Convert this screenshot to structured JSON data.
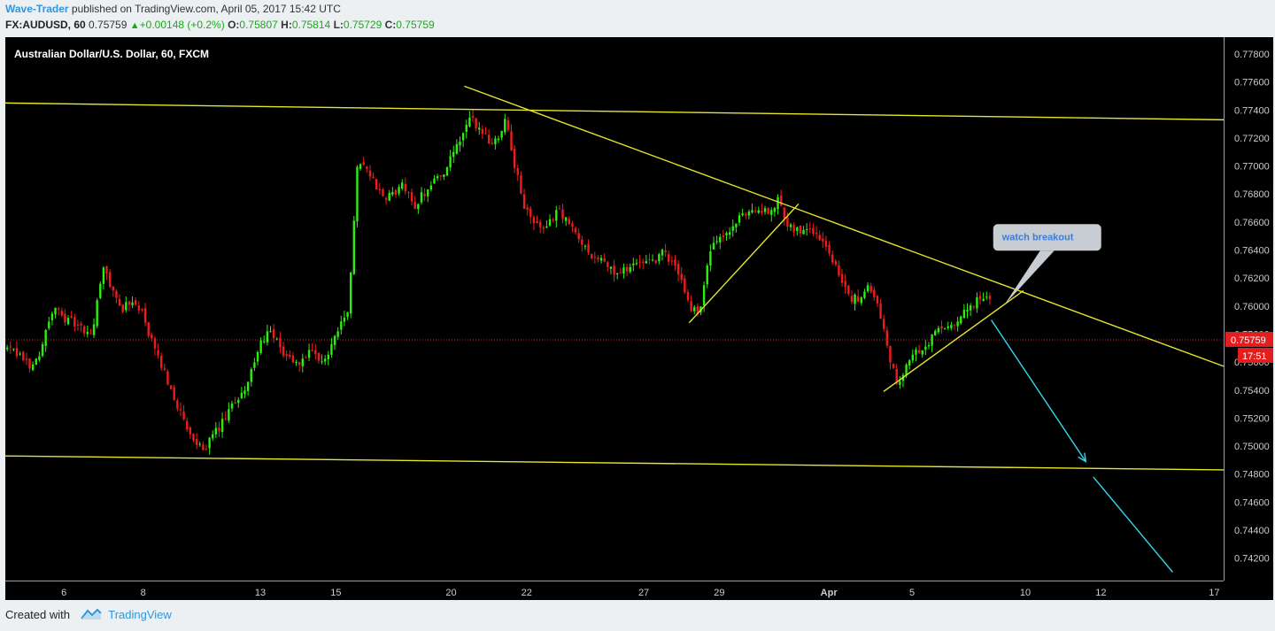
{
  "header": {
    "author": "Wave-Trader",
    "published_text": " published on TradingView.com, April 05, 2017 15:42 UTC",
    "symbol": "FX:AUDUSD, 60",
    "last": "0.75759",
    "change": "+0.00148 (+0.2%)",
    "o_label": "O:",
    "o_value": "0.75807",
    "h_label": "H:",
    "h_value": "0.75814",
    "l_label": "L:",
    "l_value": "0.75729",
    "c_label": "C:",
    "c_value": "0.75759"
  },
  "chart_data": {
    "type": "candlestick",
    "title": "Australian Dollar/U.S. Dollar, 60, FXCM",
    "ylim": [
      0.7404,
      0.7792
    ],
    "y_ticks": [
      "0.77800",
      "0.77600",
      "0.77400",
      "0.77200",
      "0.77000",
      "0.76800",
      "0.76600",
      "0.76400",
      "0.76200",
      "0.76000",
      "0.75800",
      "0.75600",
      "0.75400",
      "0.75200",
      "0.75000",
      "0.74800",
      "0.74600",
      "0.74400",
      "0.74200"
    ],
    "x_ticks": [
      {
        "label": "6",
        "t": 3.1
      },
      {
        "label": "8",
        "t": 7.3
      },
      {
        "label": "13",
        "t": 13.5
      },
      {
        "label": "15",
        "t": 17.5
      },
      {
        "label": "20",
        "t": 23.6
      },
      {
        "label": "22",
        "t": 27.6
      },
      {
        "label": "27",
        "t": 33.8
      },
      {
        "label": "29",
        "t": 37.8
      },
      {
        "label": "Apr",
        "t": 43.6,
        "bold": true
      },
      {
        "label": "5",
        "t": 48.0
      },
      {
        "label": "10",
        "t": 54.0
      },
      {
        "label": "12",
        "t": 58.0
      },
      {
        "label": "17",
        "t": 64.0
      }
    ],
    "x_range": [
      0,
      64.5
    ],
    "price_path": [
      [
        0.0,
        0.757
      ],
      [
        1.5,
        0.7556
      ],
      [
        2.5,
        0.7598
      ],
      [
        3.5,
        0.7588
      ],
      [
        4.5,
        0.7578
      ],
      [
        5.2,
        0.7628
      ],
      [
        6.0,
        0.7598
      ],
      [
        7.0,
        0.7603
      ],
      [
        7.8,
        0.757
      ],
      [
        8.8,
        0.754
      ],
      [
        9.6,
        0.751
      ],
      [
        10.2,
        0.7497
      ],
      [
        11.0,
        0.7506
      ],
      [
        12.0,
        0.7528
      ],
      [
        12.8,
        0.7546
      ],
      [
        13.8,
        0.7583
      ],
      [
        14.6,
        0.7568
      ],
      [
        15.4,
        0.7558
      ],
      [
        16.0,
        0.7566
      ],
      [
        16.8,
        0.7558
      ],
      [
        17.6,
        0.7586
      ],
      [
        18.2,
        0.76
      ],
      [
        18.6,
        0.771
      ],
      [
        19.2,
        0.7696
      ],
      [
        20.0,
        0.7675
      ],
      [
        21.0,
        0.7686
      ],
      [
        21.6,
        0.7671
      ],
      [
        22.5,
        0.7688
      ],
      [
        23.3,
        0.7698
      ],
      [
        24.0,
        0.7716
      ],
      [
        24.5,
        0.7733
      ],
      [
        25.0,
        0.7728
      ],
      [
        25.8,
        0.7715
      ],
      [
        26.5,
        0.7736
      ],
      [
        27.0,
        0.7695
      ],
      [
        27.6,
        0.7665
      ],
      [
        28.6,
        0.7651
      ],
      [
        29.2,
        0.7672
      ],
      [
        29.8,
        0.7658
      ],
      [
        30.8,
        0.764
      ],
      [
        31.6,
        0.7631
      ],
      [
        32.4,
        0.7622
      ],
      [
        33.2,
        0.7631
      ],
      [
        34.0,
        0.7628
      ],
      [
        34.8,
        0.7638
      ],
      [
        35.6,
        0.7625
      ],
      [
        36.2,
        0.76
      ],
      [
        36.7,
        0.7594
      ],
      [
        37.3,
        0.7641
      ],
      [
        38.0,
        0.7648
      ],
      [
        38.6,
        0.7658
      ],
      [
        39.3,
        0.7668
      ],
      [
        39.8,
        0.7671
      ],
      [
        40.4,
        0.7664
      ],
      [
        40.9,
        0.7677
      ],
      [
        41.4,
        0.766
      ],
      [
        42.0,
        0.7653
      ],
      [
        42.6,
        0.7658
      ],
      [
        43.2,
        0.7646
      ],
      [
        44.0,
        0.763
      ],
      [
        44.6,
        0.7603
      ],
      [
        45.3,
        0.7608
      ],
      [
        45.8,
        0.7613
      ],
      [
        46.3,
        0.7596
      ],
      [
        46.7,
        0.7568
      ],
      [
        47.2,
        0.7546
      ],
      [
        47.8,
        0.7563
      ],
      [
        48.6,
        0.7568
      ],
      [
        49.3,
        0.7583
      ],
      [
        50.0,
        0.7583
      ],
      [
        50.7,
        0.7593
      ],
      [
        51.3,
        0.7603
      ],
      [
        51.9,
        0.7608
      ],
      [
        52.2,
        0.7606
      ]
    ],
    "annotations": {
      "yellow_lines": [
        {
          "p1": [
            0.0,
            0.7745
          ],
          "p2": [
            64.5,
            0.7733
          ]
        },
        {
          "p1": [
            0.0,
            0.7493
          ],
          "p2": [
            64.5,
            0.7483
          ]
        },
        {
          "p1": [
            24.3,
            0.7757
          ],
          "p2": [
            64.5,
            0.7557
          ]
        },
        {
          "p1": [
            36.2,
            0.7588
          ],
          "p2": [
            42.0,
            0.7673
          ]
        },
        {
          "p1": [
            46.5,
            0.7539
          ],
          "p2": [
            53.9,
            0.7611
          ]
        }
      ],
      "cyan_arrows": [
        {
          "p1": [
            52.2,
            0.759
          ],
          "p2": [
            57.2,
            0.7489
          ],
          "arrowhead": true
        },
        {
          "p1": [
            57.6,
            0.7478
          ],
          "p2": [
            61.8,
            0.741
          ],
          "arrowhead": false
        }
      ],
      "callout": {
        "text": "watch breakout",
        "x": 52.3,
        "y": 0.76585,
        "tip_t": 52.9,
        "tip_v": 0.7601
      },
      "price_line": 0.75759
    },
    "last_price_label": "0.75759",
    "countdown_label": "17:51",
    "colors": {
      "up": "#2bf00d",
      "down": "#f01b1b",
      "bg": "#000000",
      "axis_text": "#cccccc",
      "trend": "#e8e62a",
      "arrow": "#33d8f0",
      "last": "#e31e1e",
      "callout": "#c8ccd3",
      "callout_text": "#3d7dd6"
    }
  },
  "footer": {
    "created_with": "Created with",
    "brand": "TradingView"
  }
}
